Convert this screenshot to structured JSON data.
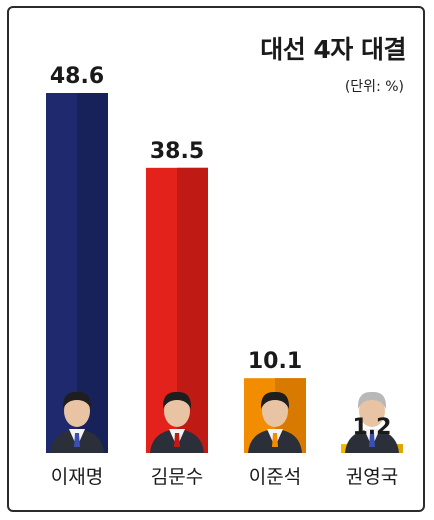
{
  "chart_data": {
    "type": "bar",
    "title": "대선 4자 대결",
    "unit_label": "(단위: %)",
    "categories": [
      "이재명",
      "김문수",
      "이준석",
      "권영국"
    ],
    "values": [
      48.6,
      38.5,
      10.1,
      1.2
    ],
    "ylim": [
      0,
      48.6
    ],
    "grid": false,
    "colors": [
      "#1f2a6e",
      "#e3231b",
      "#f28c00",
      "#f5b800"
    ],
    "colors_dark": [
      "#18225a",
      "#c01a14",
      "#d97a00",
      "#e0a600"
    ]
  }
}
